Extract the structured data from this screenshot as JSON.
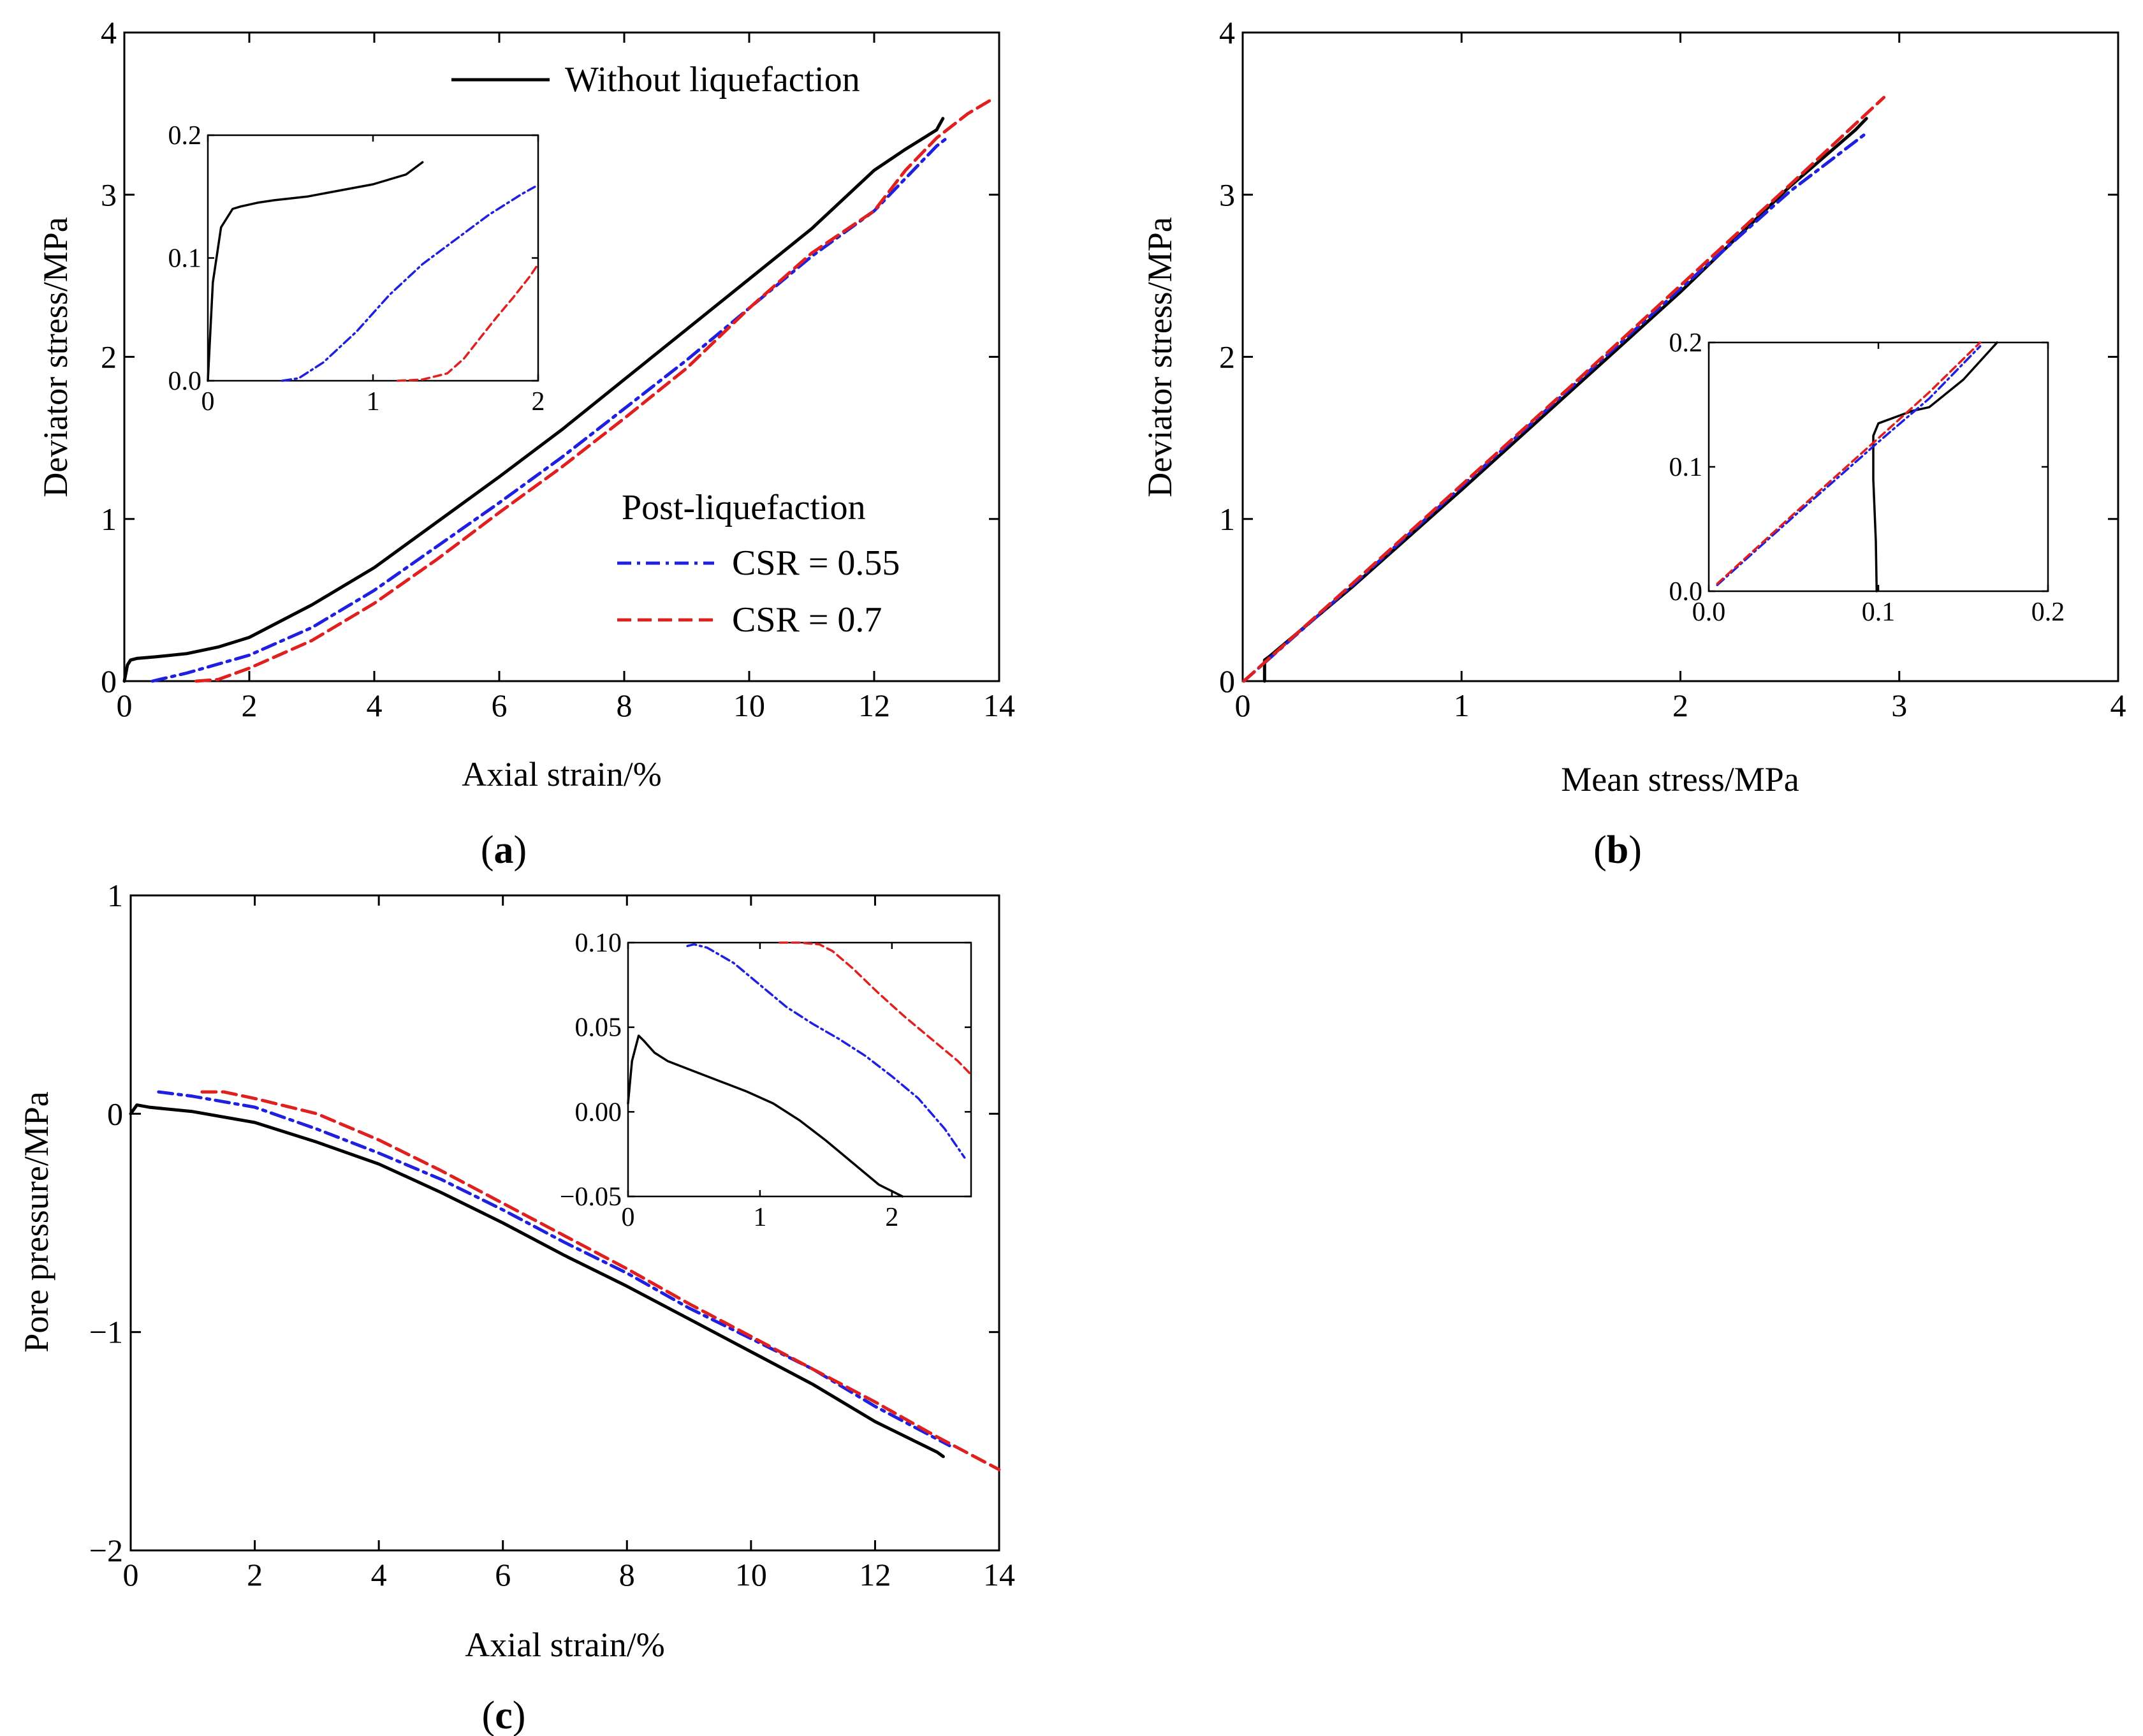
{
  "colors": {
    "without": "#000000",
    "csr055": "#1f1fe0",
    "csr07": "#e01f1f",
    "axis": "#000000",
    "background": "#ffffff"
  },
  "panels": {
    "a": {
      "label": "a",
      "open": "(",
      "close": ")"
    },
    "b": {
      "label": "b",
      "open": "(",
      "close": ")"
    },
    "c": {
      "label": "c",
      "open": "(",
      "close": ")"
    }
  },
  "legend": {
    "without": "Without liquefaction",
    "group_title": "Post-liquefaction",
    "csr055": "CSR = 0.55",
    "csr07": "CSR = 0.7"
  },
  "chart_data": [
    {
      "id": "a",
      "type": "line",
      "title": "",
      "xlabel": "Axial strain/%",
      "ylabel": "Deviator stress/MPa",
      "xlim": [
        0,
        14
      ],
      "ylim": [
        0,
        4
      ],
      "xticks": [
        0,
        2,
        4,
        6,
        8,
        10,
        12,
        14
      ],
      "yticks": [
        0,
        1,
        2,
        3,
        4
      ],
      "series": [
        {
          "name": "Without liquefaction",
          "key": "without",
          "x": [
            0,
            0.05,
            0.1,
            0.2,
            0.5,
            1,
            1.5,
            2,
            3,
            4,
            5,
            6,
            7,
            8,
            9,
            10,
            11,
            12,
            12.5,
            13,
            13.1
          ],
          "y": [
            0,
            0.1,
            0.13,
            0.14,
            0.15,
            0.17,
            0.21,
            0.27,
            0.47,
            0.7,
            0.98,
            1.26,
            1.55,
            1.86,
            2.17,
            2.48,
            2.79,
            3.15,
            3.28,
            3.4,
            3.47
          ]
        },
        {
          "name": "CSR = 0.55",
          "key": "csr055",
          "x": [
            0.45,
            1,
            2,
            3,
            4,
            5,
            6,
            7,
            8,
            9,
            10,
            11,
            12,
            12.5,
            13,
            13.2
          ],
          "y": [
            0,
            0.05,
            0.16,
            0.33,
            0.56,
            0.83,
            1.1,
            1.38,
            1.68,
            1.98,
            2.3,
            2.62,
            2.9,
            3.1,
            3.3,
            3.36
          ]
        },
        {
          "name": "CSR = 0.7",
          "key": "csr07",
          "x": [
            1.15,
            1.5,
            2,
            3,
            4,
            5,
            6,
            7,
            8,
            9,
            10,
            11,
            12,
            12.5,
            13,
            13.5,
            13.85
          ],
          "y": [
            0,
            0.01,
            0.08,
            0.25,
            0.48,
            0.75,
            1.04,
            1.32,
            1.62,
            1.93,
            2.3,
            2.64,
            2.9,
            3.15,
            3.35,
            3.5,
            3.58
          ]
        }
      ],
      "inset": {
        "xlim": [
          0,
          2
        ],
        "ylim": [
          0,
          0.2
        ],
        "xticks": [
          0,
          1,
          2
        ],
        "xtick_labels": [
          "0",
          "1",
          "2"
        ],
        "yticks": [
          0,
          0.1,
          0.2
        ],
        "ytick_labels": [
          "0.0",
          "0.1",
          "0.2"
        ],
        "series": [
          {
            "key": "without",
            "x": [
              0,
              0.03,
              0.08,
              0.15,
              0.2,
              0.3,
              0.4,
              0.6,
              0.8,
              1.0,
              1.2,
              1.3
            ],
            "y": [
              0,
              0.08,
              0.125,
              0.14,
              0.142,
              0.145,
              0.147,
              0.15,
              0.155,
              0.16,
              0.168,
              0.178
            ]
          },
          {
            "key": "csr055",
            "x": [
              0.45,
              0.55,
              0.7,
              0.9,
              1.1,
              1.3,
              1.5,
              1.7,
              1.9,
              1.98
            ],
            "y": [
              0,
              0.002,
              0.015,
              0.04,
              0.07,
              0.095,
              0.115,
              0.135,
              0.152,
              0.158
            ]
          },
          {
            "key": "csr07",
            "x": [
              1.15,
              1.3,
              1.45,
              1.55,
              1.65,
              1.75,
              1.85,
              1.95,
              2.0
            ],
            "y": [
              0,
              0.001,
              0.006,
              0.018,
              0.035,
              0.052,
              0.068,
              0.085,
              0.095
            ]
          }
        ]
      }
    },
    {
      "id": "b",
      "type": "line",
      "title": "",
      "xlabel": "Mean stress/MPa",
      "ylabel": "Deviator stress/MPa",
      "xlim": [
        0,
        4
      ],
      "ylim": [
        0,
        4
      ],
      "xticks": [
        0,
        1,
        2,
        3,
        4
      ],
      "yticks": [
        0,
        1,
        2,
        3,
        4
      ],
      "series": [
        {
          "name": "Without liquefaction",
          "key": "without",
          "x": [
            0.1,
            0.1,
            0.12,
            0.5,
            1,
            1.5,
            2,
            2.5,
            2.8,
            2.85
          ],
          "y": [
            0,
            0.13,
            0.15,
            0.58,
            1.18,
            1.79,
            2.4,
            3.05,
            3.4,
            3.47
          ]
        },
        {
          "name": "CSR = 0.55",
          "key": "csr055",
          "x": [
            0.005,
            0.5,
            1,
            1.5,
            2,
            2.5,
            2.85
          ],
          "y": [
            0,
            0.59,
            1.2,
            1.81,
            2.42,
            3.02,
            3.38
          ]
        },
        {
          "name": "CSR = 0.7",
          "key": "csr07",
          "x": [
            0.005,
            0.5,
            1,
            1.5,
            2,
            2.5,
            2.93
          ],
          "y": [
            0,
            0.6,
            1.21,
            1.82,
            2.44,
            3.06,
            3.6
          ]
        }
      ],
      "inset": {
        "xlim": [
          0,
          0.2
        ],
        "ylim": [
          0,
          0.2
        ],
        "xticks": [
          0,
          0.1,
          0.2
        ],
        "xtick_labels": [
          "0.0",
          "0.1",
          "0.2"
        ],
        "yticks": [
          0,
          0.1,
          0.2
        ],
        "ytick_labels": [
          "0.0",
          "0.1",
          "0.2"
        ],
        "series": [
          {
            "key": "without",
            "x": [
              0.099,
              0.0985,
              0.097,
              0.097,
              0.1,
              0.11,
              0.12,
              0.13,
              0.15,
              0.17
            ],
            "y": [
              0,
              0.04,
              0.09,
              0.125,
              0.135,
              0.14,
              0.145,
              0.148,
              0.17,
              0.2
            ]
          },
          {
            "key": "csr055",
            "x": [
              0.005,
              0.05,
              0.1,
              0.13,
              0.16
            ],
            "y": [
              0.005,
              0.06,
              0.12,
              0.155,
              0.197
            ]
          },
          {
            "key": "csr07",
            "x": [
              0.005,
              0.05,
              0.1,
              0.13,
              0.16
            ],
            "y": [
              0.006,
              0.062,
              0.123,
              0.16,
              0.2
            ]
          }
        ]
      }
    },
    {
      "id": "c",
      "type": "line",
      "title": "",
      "xlabel": "Axial strain/%",
      "ylabel": "Pore pressure/MPa",
      "xlim": [
        0,
        14
      ],
      "ylim": [
        -2,
        1
      ],
      "xticks": [
        0,
        2,
        4,
        6,
        8,
        10,
        12,
        14
      ],
      "yticks": [
        -2,
        -1,
        0,
        1
      ],
      "ytick_labels": [
        "−2",
        "−1",
        "0",
        "1"
      ],
      "series": [
        {
          "name": "Without liquefaction",
          "key": "without",
          "x": [
            0,
            0.1,
            0.3,
            1,
            2,
            3,
            4,
            5,
            6,
            7,
            8,
            9,
            10,
            11,
            12,
            13,
            13.1
          ],
          "y": [
            0,
            0.04,
            0.03,
            0.01,
            -0.04,
            -0.13,
            -0.23,
            -0.36,
            -0.5,
            -0.65,
            -0.79,
            -0.94,
            -1.09,
            -1.24,
            -1.41,
            -1.55,
            -1.57
          ]
        },
        {
          "name": "CSR = 0.55",
          "key": "csr055",
          "x": [
            0.45,
            1,
            2,
            3,
            4,
            5,
            6,
            7,
            8,
            9,
            10,
            11,
            12,
            13,
            13.2
          ],
          "y": [
            0.1,
            0.08,
            0.03,
            -0.07,
            -0.18,
            -0.3,
            -0.44,
            -0.59,
            -0.73,
            -0.89,
            -1.03,
            -1.17,
            -1.34,
            -1.49,
            -1.52
          ]
        },
        {
          "name": "CSR = 0.7",
          "key": "csr07",
          "x": [
            1.15,
            1.5,
            2,
            3,
            4,
            5,
            6,
            7,
            8,
            9,
            10,
            11,
            12,
            13,
            14
          ],
          "y": [
            0.1,
            0.1,
            0.07,
            0.0,
            -0.12,
            -0.26,
            -0.41,
            -0.56,
            -0.71,
            -0.87,
            -1.02,
            -1.17,
            -1.32,
            -1.48,
            -1.63
          ]
        }
      ],
      "inset": {
        "xlim": [
          0,
          2.6
        ],
        "ylim": [
          -0.05,
          0.1
        ],
        "xticks": [
          0,
          1,
          2
        ],
        "xtick_labels": [
          "0",
          "1",
          "2"
        ],
        "yticks": [
          -0.05,
          0,
          0.05,
          0.1
        ],
        "ytick_labels": [
          "−0.05",
          "0.00",
          "0.05",
          "0.10"
        ],
        "series": [
          {
            "key": "without",
            "x": [
              0,
              0.03,
              0.08,
              0.12,
              0.2,
              0.3,
              0.5,
              0.7,
              0.9,
              1.1,
              1.3,
              1.5,
              1.7,
              1.9,
              2.08
            ],
            "y": [
              0.005,
              0.03,
              0.045,
              0.042,
              0.035,
              0.03,
              0.024,
              0.018,
              0.012,
              0.005,
              -0.005,
              -0.017,
              -0.03,
              -0.043,
              -0.05
            ]
          },
          {
            "key": "csr055",
            "x": [
              0.45,
              0.5,
              0.6,
              0.8,
              1.0,
              1.2,
              1.4,
              1.6,
              1.8,
              2.0,
              2.2,
              2.4,
              2.55
            ],
            "y": [
              0.098,
              0.099,
              0.097,
              0.088,
              0.075,
              0.062,
              0.052,
              0.043,
              0.033,
              0.021,
              0.008,
              -0.01,
              -0.027
            ]
          },
          {
            "key": "csr07",
            "x": [
              1.15,
              1.3,
              1.45,
              1.55,
              1.7,
              1.9,
              2.1,
              2.3,
              2.5,
              2.6
            ],
            "y": [
              0.1,
              0.1,
              0.099,
              0.095,
              0.085,
              0.07,
              0.056,
              0.043,
              0.03,
              0.022
            ]
          }
        ]
      }
    }
  ]
}
